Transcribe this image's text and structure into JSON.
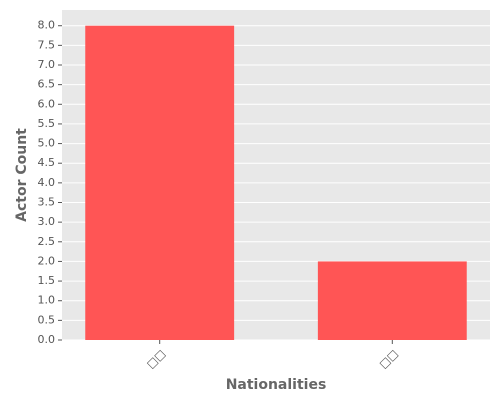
{
  "chart_data": {
    "type": "bar",
    "x_label": "Nationalities",
    "y_label": "Actor Count",
    "categories": [
      "□□",
      "□□"
    ],
    "values": [
      8,
      2
    ],
    "color": "#ff5555",
    "ylim": [
      0,
      8.4
    ],
    "yticks": [
      {
        "value": 0,
        "label": "0.0"
      },
      0.5,
      {
        "value": 1,
        "label": "1.0"
      },
      1.5,
      {
        "value": 2,
        "label": "2.0"
      },
      2.5,
      {
        "value": 3,
        "label": "3.0"
      },
      3.5,
      {
        "value": 4,
        "label": "4.0"
      },
      4.5,
      {
        "value": 5,
        "label": "5.0"
      },
      5.5,
      {
        "value": 6,
        "label": "6.0"
      },
      6.5,
      {
        "value": 7,
        "label": "7.0"
      },
      7.5,
      {
        "value": 8,
        "label": "8.0"
      }
    ],
    "grid": true
  }
}
